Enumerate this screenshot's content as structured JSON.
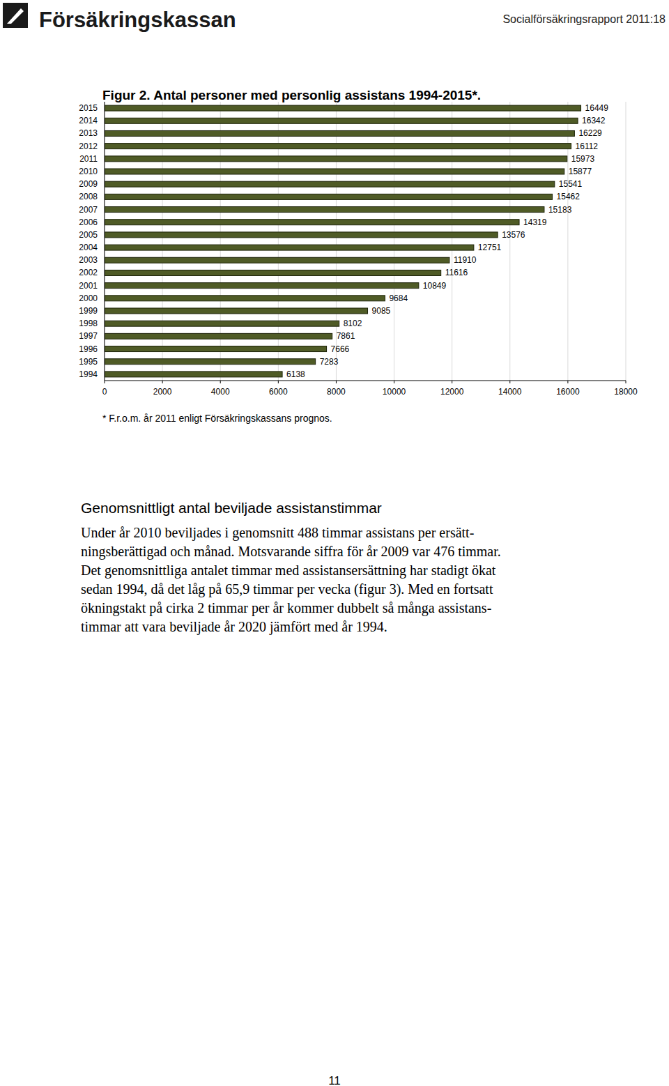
{
  "header": {
    "logo": "Försäkringskassan",
    "report": "Socialförsäkringsrapport 2011:18"
  },
  "chart_data": {
    "type": "bar",
    "orientation": "horizontal",
    "title": "Figur 2. Antal personer med personlig assistans 1994-2015*.",
    "categories": [
      "1994",
      "1995",
      "1996",
      "1997",
      "1998",
      "1999",
      "2000",
      "2001",
      "2002",
      "2003",
      "2004",
      "2005",
      "2006",
      "2007",
      "2008",
      "2009",
      "2010",
      "2011",
      "2012",
      "2013",
      "2014",
      "2015"
    ],
    "values": [
      6138,
      7283,
      7666,
      7861,
      8102,
      9085,
      9684,
      10849,
      11616,
      11910,
      12751,
      13576,
      14319,
      15183,
      15462,
      15541,
      15877,
      15973,
      16112,
      16229,
      16342,
      16449
    ],
    "color": "#4f5b26",
    "xlim": [
      0,
      18000
    ],
    "xticks": [
      0,
      2000,
      4000,
      6000,
      8000,
      10000,
      12000,
      14000,
      16000,
      18000
    ],
    "grid": true,
    "data_labels": true,
    "annotations": [
      "* F.r.o.m. år 2011 enligt Försäkringskassans prognos."
    ]
  },
  "section": {
    "heading": "Genomsnittligt antal beviljade assistanstimmar",
    "lines": [
      "Under år 2010 beviljades i genomsnitt 488 timmar assistans per ersätt-",
      "ningsberättigad och månad. Motsvarande siffra för år 2009 var 476 timmar.",
      "Det genomsnittliga antalet timmar med assistansersättning har stadigt ökat",
      "sedan 1994, då det låg på 65,9 timmar per vecka (figur 3). Med en fortsatt",
      "ökningstakt på cirka 2 timmar per år kommer dubbelt så många assistans-",
      "timmar att vara beviljade år 2020 jämfört med år 1994."
    ]
  },
  "page_number": "11"
}
